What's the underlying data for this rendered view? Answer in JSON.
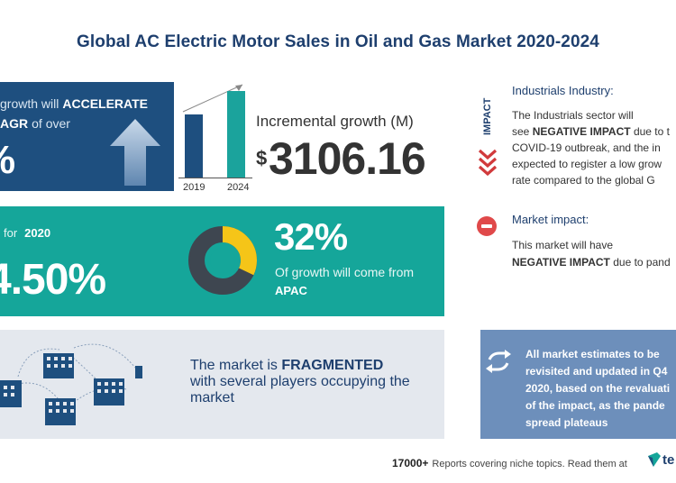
{
  "title": "Global AC Electric Motor Sales in Oil and Gas Market 2020-2024",
  "growth": {
    "line1_prefix": "growth will",
    "line1_emph": "ACCELERATE",
    "line2_emph": "AGR",
    "line2_suffix": "of over",
    "big_value": "%"
  },
  "bars": {
    "year_start": "2019",
    "year_end": "2024"
  },
  "incremental": {
    "label": "Incremental growth (M)",
    "currency": "$",
    "value": "3106.16"
  },
  "yoy": {
    "prefix": "for",
    "year": "2020",
    "value": "4.50%"
  },
  "apac": {
    "percent": "32%",
    "share": 0.32,
    "text": "Of growth will come from",
    "region": "APAC"
  },
  "fragmented": {
    "line1_prefix": "The market is",
    "line1_emph": "FRAGMENTED",
    "line2": "with several players occupying the",
    "line3": "market"
  },
  "industry": {
    "impact_word": "IMPACT",
    "title": "Industrials Industry:",
    "lines": [
      "The Industrials sector will",
      "see NEGATIVE IMPACT due to t",
      "COVID-19 outbreak, and the in",
      "expected to register a low grow",
      "rate compared to the global G"
    ],
    "line2_prefix": "see",
    "line2_emph": "NEGATIVE IMPACT",
    "line2_suffix": "due to t"
  },
  "market_impact": {
    "title": "Market impact:",
    "line1": "This market will have",
    "line2_emph": "NEGATIVE IMPACT",
    "line2_suffix": "due to pand"
  },
  "estimates": {
    "lines": [
      "All market estimates to be",
      "revisited and updated in Q4",
      "2020, based on the revaluati",
      "of the impact, as the pande",
      "spread plateaus"
    ]
  },
  "footer": {
    "count": "17000+",
    "text": "Reports covering niche topics. Read them at",
    "logo": "te"
  },
  "colors": {
    "navy": "#1e4f7f",
    "teal": "#15a69a",
    "yellow": "#f5c518",
    "red": "#e0494a",
    "steel_blue": "#6d8fbb",
    "grey_panel": "#e4e8ee"
  }
}
